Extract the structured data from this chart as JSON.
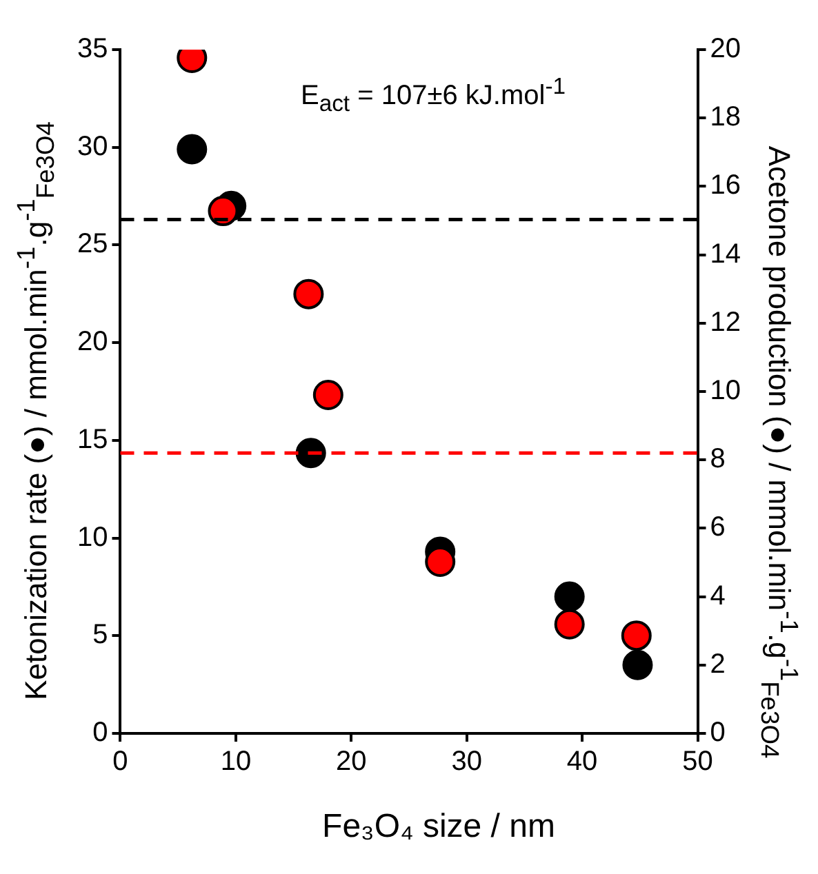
{
  "chart_data": {
    "type": "scatter",
    "xlabel": "Fe₃O₄ size / nm",
    "ylabel": "Ketonization rate (●) / mmol.min$^{-1}$.g$^{-1}$$_{Fe3O4}$",
    "y2label": "Acetone production (●) / mmol.min$^{-1}$.g$^{-1}$$_{Fe3O4}$",
    "annotations": [
      "E$_{act}$ = 107±6 kJ.mol$^{-1}$"
    ],
    "series": [
      {
        "color": "#000000",
        "x": [
          6.2,
          9.6,
          16.5,
          18.0,
          27.7,
          38.9,
          44.8
        ],
        "values": [
          29.9,
          27.0,
          14.35,
          null,
          9.3,
          7.0,
          3.5
        ]
      },
      {
        "color": "#ff0000",
        "axis": "y2",
        "x": [
          6.2,
          8.9,
          16.3,
          18.0,
          27.7,
          38.9,
          44.7
        ],
        "values": [
          19.76,
          15.28,
          12.85,
          9.9,
          5.02,
          3.19,
          2.86
        ]
      }
    ],
    "xlim": [
      0,
      50
    ],
    "xticks": [
      0,
      10,
      20,
      30,
      40,
      50
    ],
    "ylim": [
      0,
      35
    ],
    "yticks": [
      0,
      5,
      10,
      15,
      20,
      25,
      30,
      35
    ],
    "y2lim": [
      0,
      20
    ],
    "y2ticks": [
      0,
      2,
      4,
      6,
      8,
      10,
      12,
      14,
      16,
      18,
      20
    ],
    "ref_lines": [
      {
        "axis": "y",
        "value": 26.3,
        "color": "#000000",
        "line_style": "dashed"
      },
      {
        "axis": "y2",
        "value": 8.2,
        "color": "#ff0000",
        "line_style": "dashed"
      }
    ],
    "marker": "circle",
    "grid": false,
    "legend": false
  }
}
